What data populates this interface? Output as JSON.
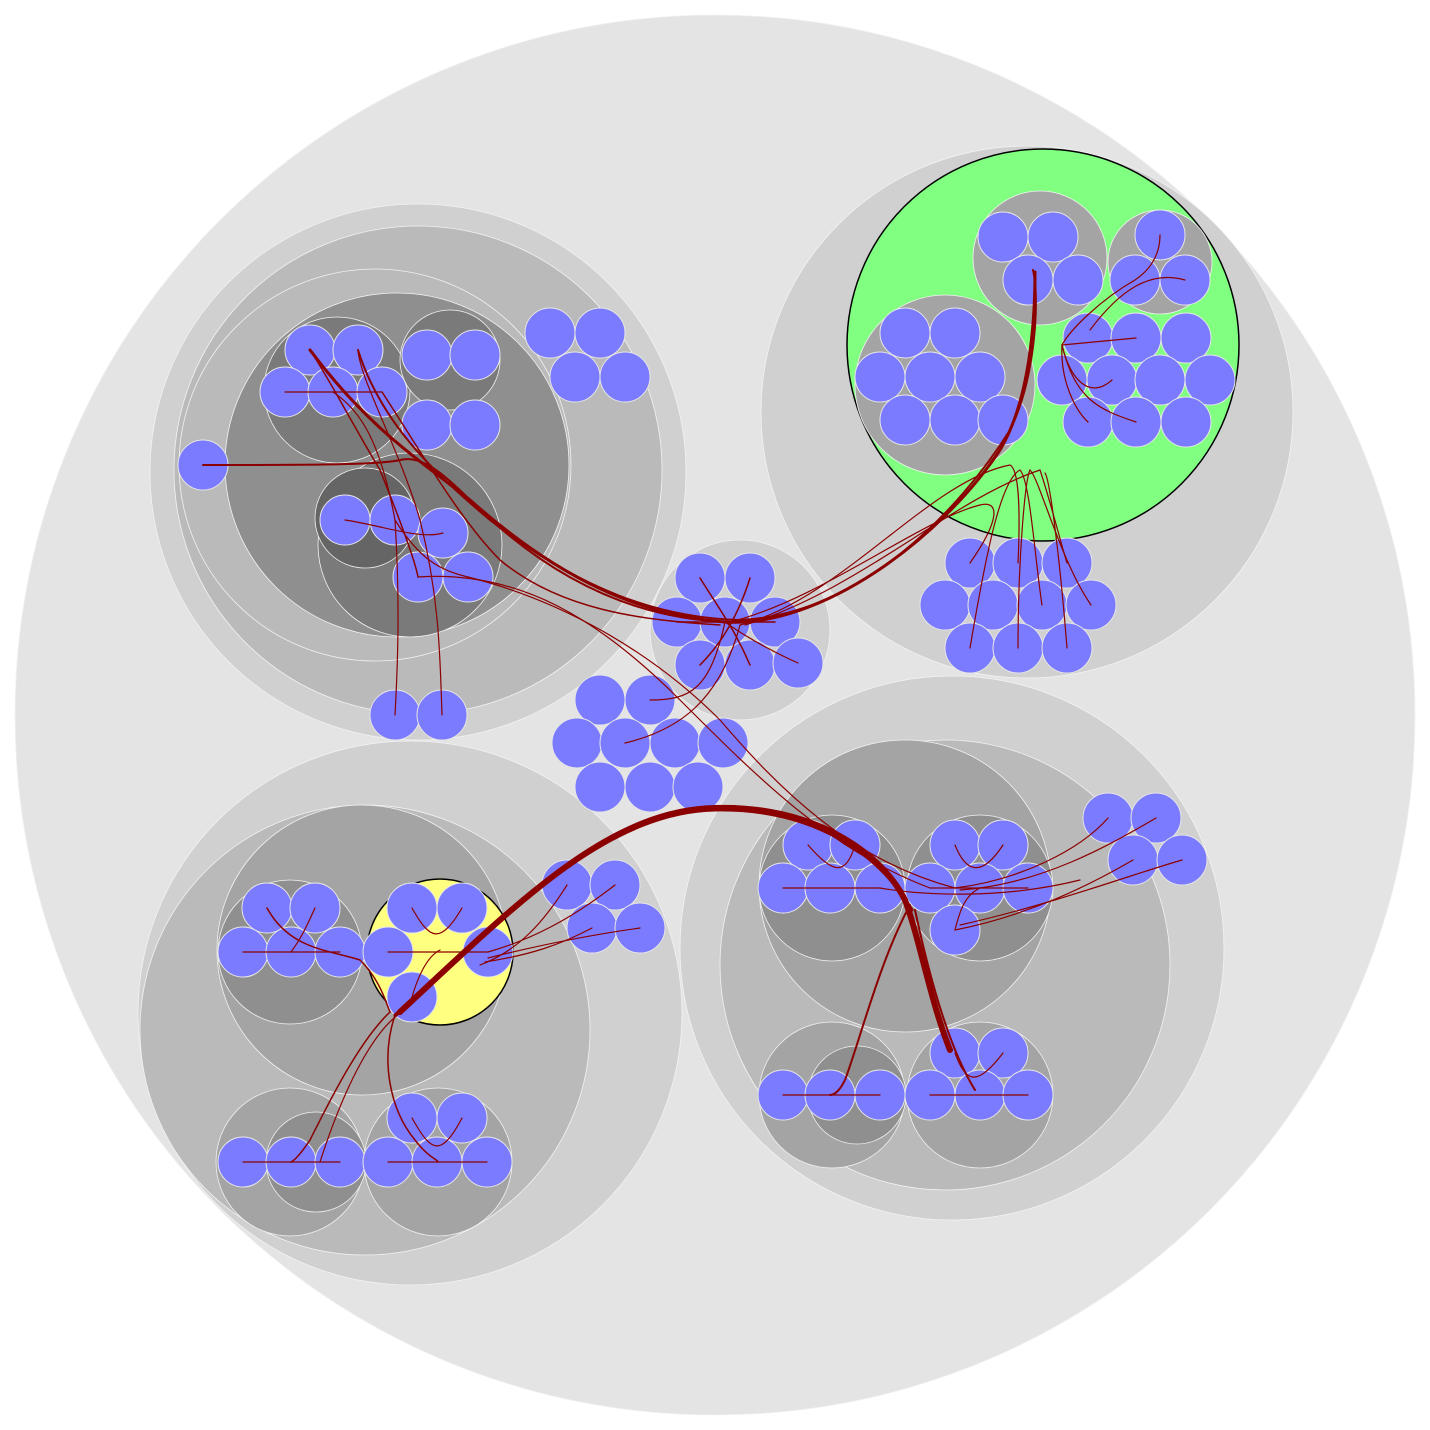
{
  "diagram": {
    "type": "hierarchical-edge-bundling-circle-packing",
    "colors": {
      "page_background": "#ffffff",
      "root_circle": "#e4e4e4",
      "level_1": "#d0d0d0",
      "level_2": "#bababa",
      "level_3": "#a4a4a4",
      "level_4": "#8f8f8f",
      "level_5": "#7a7a7a",
      "level_6": "#656565",
      "leaf_node": "#7b7bff",
      "highlight_green": "#80ff80",
      "highlight_yellow": "#ffff80",
      "highlight_outline": "#000000",
      "edge": "#8b0000"
    },
    "highlighted_groups": [
      "green-cluster",
      "yellow-cluster"
    ],
    "labels": []
  }
}
